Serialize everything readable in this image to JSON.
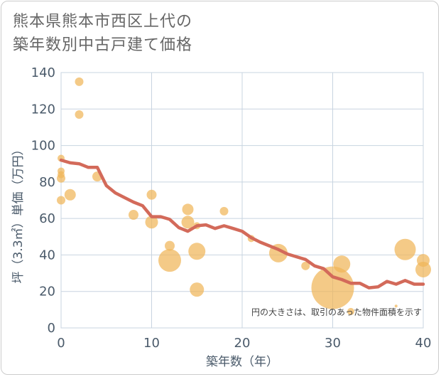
{
  "title_line1": "熊本県熊本市西区上代の",
  "title_line2": "築年数別中古戸建て価格",
  "chart_data": {
    "type": "scatter",
    "title": "熊本県熊本市西区上代の築年数別中古戸建て価格",
    "xlabel": "築年数（年）",
    "ylabel": "坪（3.3㎡）単価（万円）",
    "xlim": [
      0,
      40
    ],
    "ylim": [
      0,
      140
    ],
    "xticks": [
      0,
      10,
      20,
      30,
      40
    ],
    "yticks": [
      0,
      20,
      40,
      60,
      80,
      100,
      120,
      140
    ],
    "grid": true,
    "annotation": "円の大きさは、取引のあった物件面積を示す",
    "colors": {
      "bubble": "#f0b659",
      "line": "#d36a5a",
      "grid": "#c8d4e0"
    },
    "scatter_points": [
      {
        "x": 0,
        "y": 93,
        "size": 5
      },
      {
        "x": 0,
        "y": 86,
        "size": 5
      },
      {
        "x": 0,
        "y": 84,
        "size": 5
      },
      {
        "x": 0,
        "y": 82,
        "size": 6
      },
      {
        "x": 0,
        "y": 70,
        "size": 6
      },
      {
        "x": 1,
        "y": 73,
        "size": 8
      },
      {
        "x": 2,
        "y": 135,
        "size": 6
      },
      {
        "x": 2,
        "y": 117,
        "size": 6
      },
      {
        "x": 4,
        "y": 83,
        "size": 7
      },
      {
        "x": 8,
        "y": 62,
        "size": 7
      },
      {
        "x": 10,
        "y": 73,
        "size": 7
      },
      {
        "x": 10,
        "y": 58,
        "size": 9
      },
      {
        "x": 12,
        "y": 45,
        "size": 7
      },
      {
        "x": 12,
        "y": 37,
        "size": 16
      },
      {
        "x": 14,
        "y": 65,
        "size": 8
      },
      {
        "x": 14,
        "y": 58,
        "size": 9
      },
      {
        "x": 15,
        "y": 56,
        "size": 5
      },
      {
        "x": 15,
        "y": 42,
        "size": 12
      },
      {
        "x": 15,
        "y": 21,
        "size": 10
      },
      {
        "x": 18,
        "y": 64,
        "size": 6
      },
      {
        "x": 21,
        "y": 49,
        "size": 5
      },
      {
        "x": 24,
        "y": 41,
        "size": 13
      },
      {
        "x": 27,
        "y": 34,
        "size": 6
      },
      {
        "x": 30,
        "y": 22,
        "size": 30
      },
      {
        "x": 31,
        "y": 35,
        "size": 12
      },
      {
        "x": 32,
        "y": 9,
        "size": 5
      },
      {
        "x": 37,
        "y": 12,
        "size": 2
      },
      {
        "x": 38,
        "y": 43,
        "size": 15
      },
      {
        "x": 40,
        "y": 37,
        "size": 9
      },
      {
        "x": 40,
        "y": 32,
        "size": 11
      }
    ],
    "trend_line": [
      {
        "x": 0,
        "y": 92
      },
      {
        "x": 1,
        "y": 90.5
      },
      {
        "x": 2,
        "y": 90
      },
      {
        "x": 3,
        "y": 88
      },
      {
        "x": 4,
        "y": 88
      },
      {
        "x": 5,
        "y": 78
      },
      {
        "x": 6,
        "y": 74
      },
      {
        "x": 7,
        "y": 71.5
      },
      {
        "x": 8,
        "y": 69
      },
      {
        "x": 9,
        "y": 67
      },
      {
        "x": 10,
        "y": 61
      },
      {
        "x": 11,
        "y": 61
      },
      {
        "x": 12,
        "y": 59.5
      },
      {
        "x": 13,
        "y": 55
      },
      {
        "x": 14,
        "y": 53
      },
      {
        "x": 15,
        "y": 56
      },
      {
        "x": 16,
        "y": 56.5
      },
      {
        "x": 17,
        "y": 54.5
      },
      {
        "x": 18,
        "y": 56
      },
      {
        "x": 19,
        "y": 54.5
      },
      {
        "x": 20,
        "y": 53
      },
      {
        "x": 21,
        "y": 49.5
      },
      {
        "x": 22,
        "y": 47
      },
      {
        "x": 23,
        "y": 45
      },
      {
        "x": 24,
        "y": 43
      },
      {
        "x": 25,
        "y": 40.5
      },
      {
        "x": 26,
        "y": 39
      },
      {
        "x": 27,
        "y": 37.5
      },
      {
        "x": 28,
        "y": 34
      },
      {
        "x": 29,
        "y": 32.5
      },
      {
        "x": 30,
        "y": 28
      },
      {
        "x": 31,
        "y": 26.5
      },
      {
        "x": 32,
        "y": 24.5
      },
      {
        "x": 33,
        "y": 24.5
      },
      {
        "x": 34,
        "y": 22
      },
      {
        "x": 35,
        "y": 22.5
      },
      {
        "x": 36,
        "y": 25.5
      },
      {
        "x": 37,
        "y": 24
      },
      {
        "x": 38,
        "y": 26
      },
      {
        "x": 39,
        "y": 24
      },
      {
        "x": 40,
        "y": 24
      }
    ]
  }
}
